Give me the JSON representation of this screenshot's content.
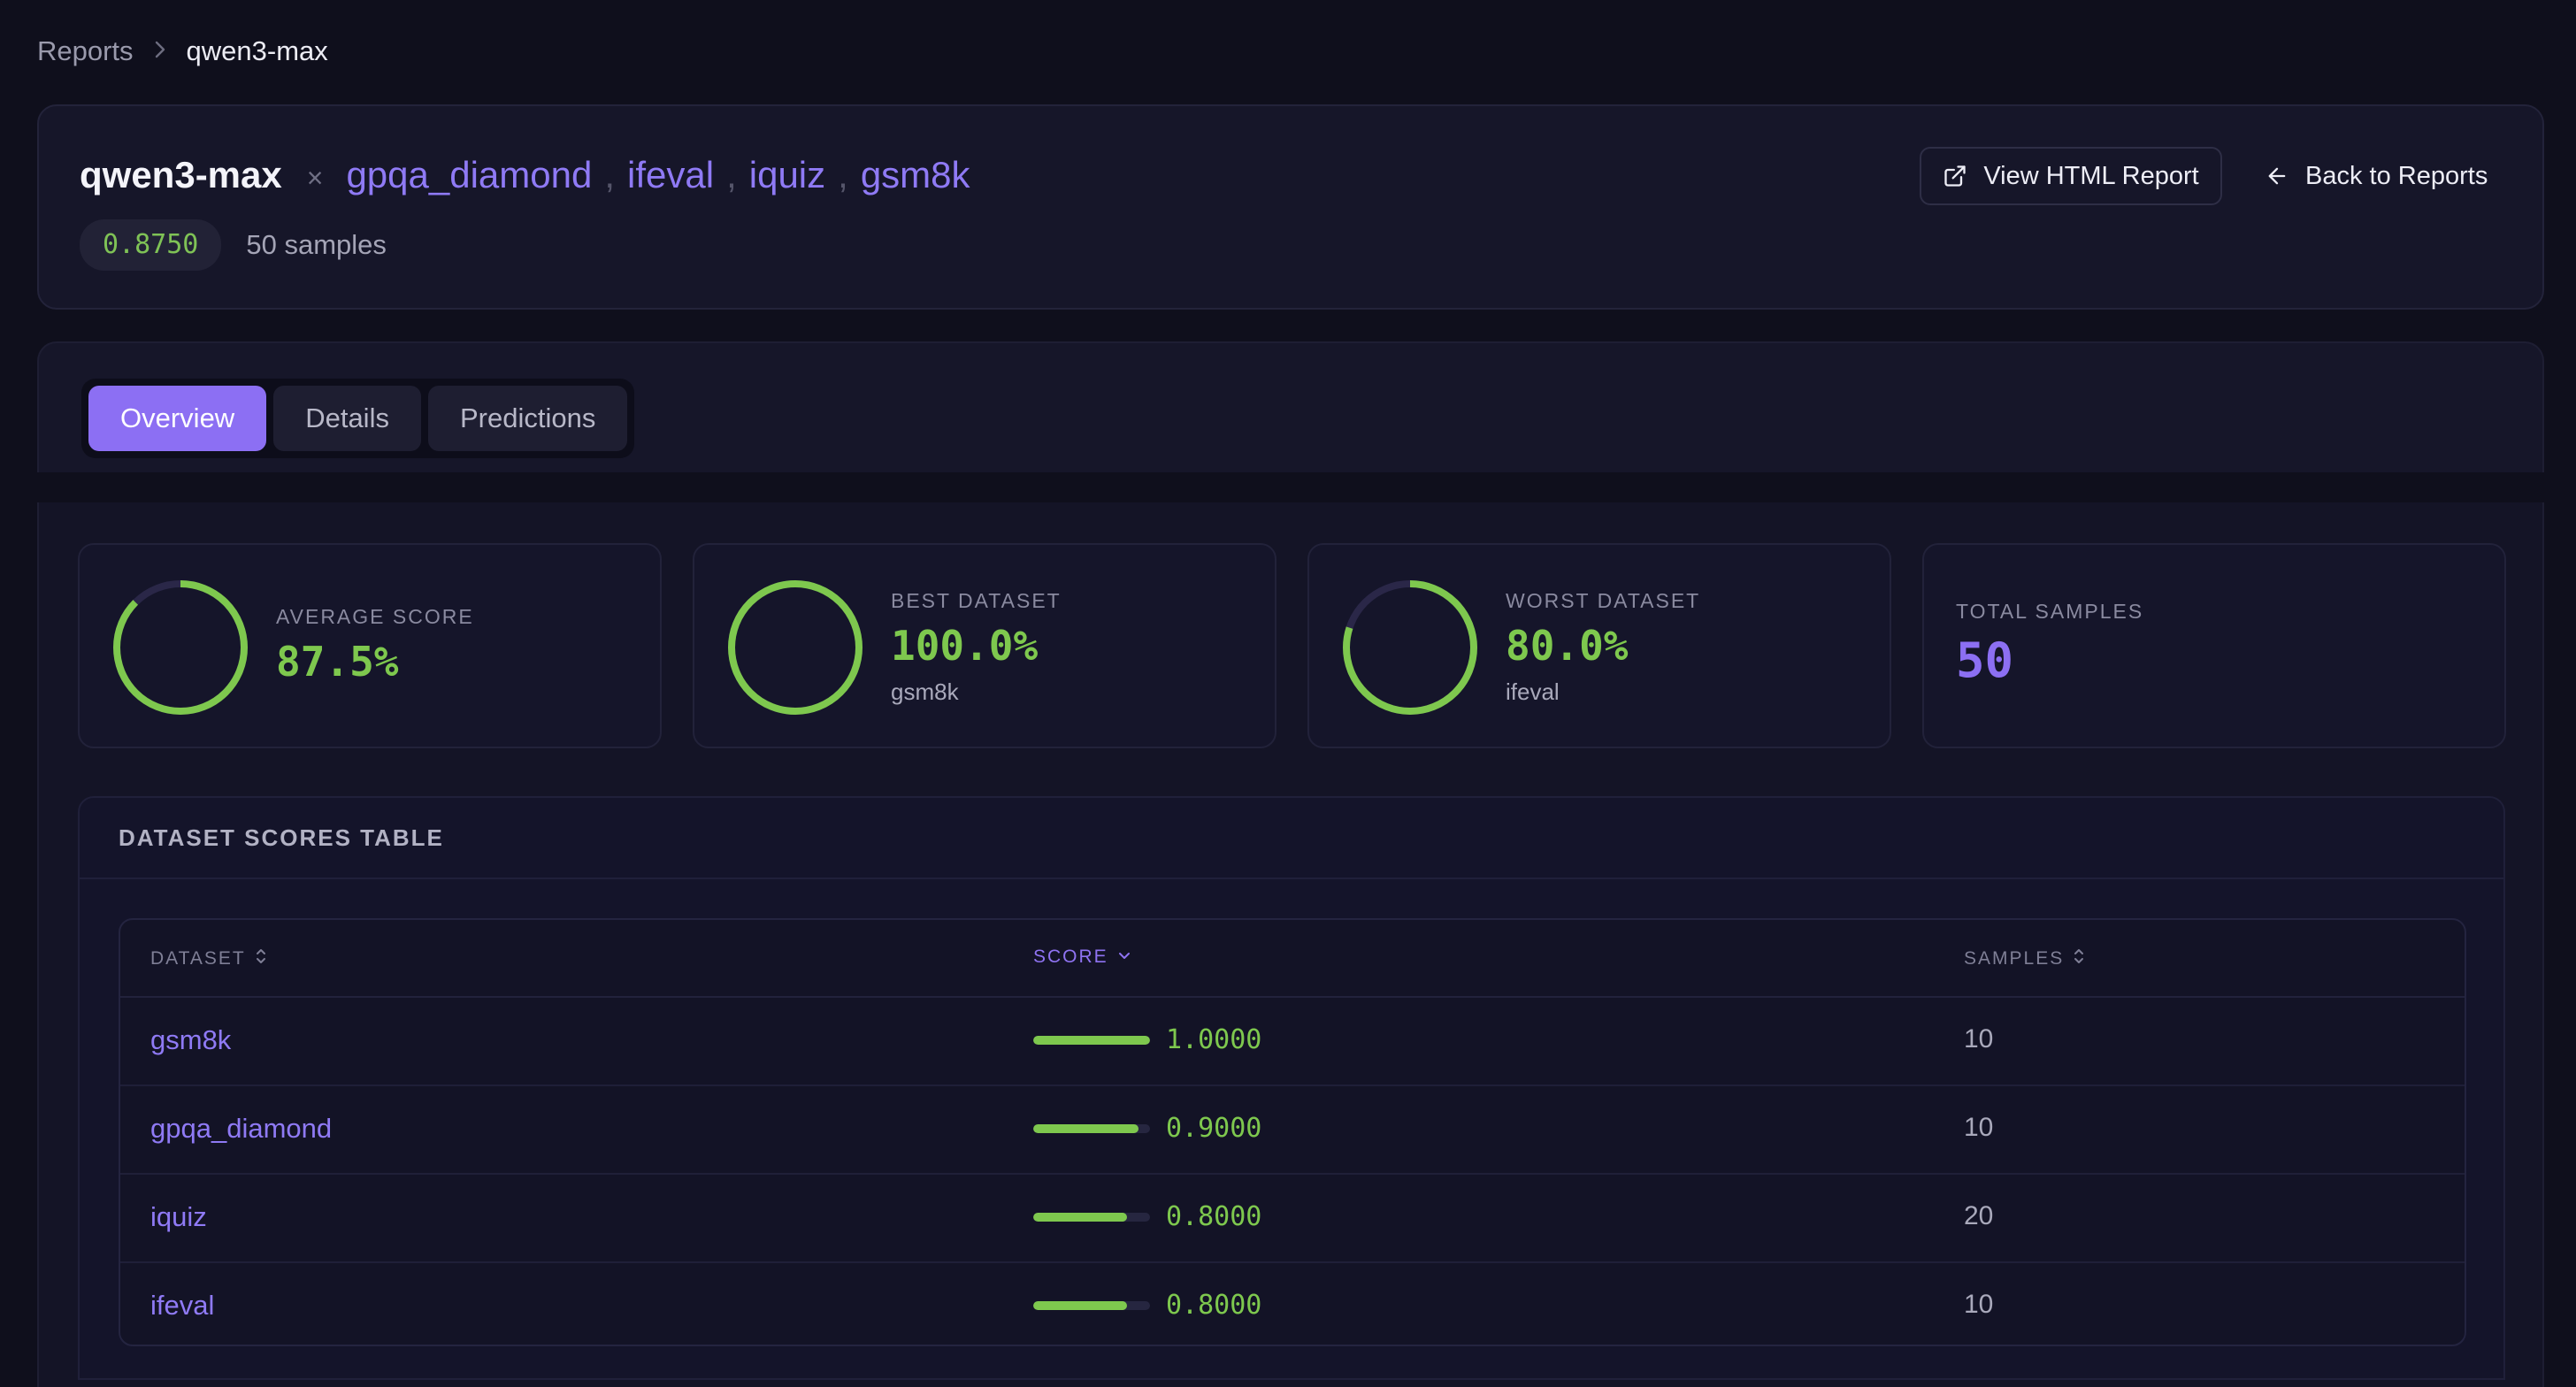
{
  "breadcrumb": {
    "root": "Reports",
    "current": "qwen3-max"
  },
  "header": {
    "model": "qwen3-max",
    "times": "×",
    "datasets": [
      "gpqa_diamond",
      "ifeval",
      "iquiz",
      "gsm8k"
    ],
    "separator": ",",
    "score": "0.8750",
    "samples": "50 samples",
    "view_html_label": "View HTML Report",
    "back_label": "Back to Reports"
  },
  "tabs": [
    {
      "label": "Overview",
      "active": true
    },
    {
      "label": "Details",
      "active": false
    },
    {
      "label": "Predictions",
      "active": false
    }
  ],
  "stats": {
    "average": {
      "label": "AVERAGE SCORE",
      "value": "87.5%",
      "fraction": 0.875
    },
    "best": {
      "label": "BEST DATASET",
      "value": "100.0%",
      "sub": "gsm8k",
      "fraction": 1.0
    },
    "worst": {
      "label": "WORST DATASET",
      "value": "80.0%",
      "sub": "ifeval",
      "fraction": 0.8
    },
    "total": {
      "label": "TOTAL SAMPLES",
      "value": "50"
    }
  },
  "colors": {
    "accent": "#8c6ff3",
    "success": "#7ec84e",
    "ring_track": "#2a2748"
  },
  "table": {
    "title": "DATASET SCORES TABLE",
    "headers": {
      "dataset": "DATASET",
      "score": "SCORE",
      "samples": "SAMPLES"
    },
    "rows": [
      {
        "dataset": "gsm8k",
        "score": "1.0000",
        "fraction": 1.0,
        "samples": "10"
      },
      {
        "dataset": "gpqa_diamond",
        "score": "0.9000",
        "fraction": 0.9,
        "samples": "10"
      },
      {
        "dataset": "iquiz",
        "score": "0.8000",
        "fraction": 0.8,
        "samples": "20"
      },
      {
        "dataset": "ifeval",
        "score": "0.8000",
        "fraction": 0.8,
        "samples": "10"
      }
    ]
  }
}
